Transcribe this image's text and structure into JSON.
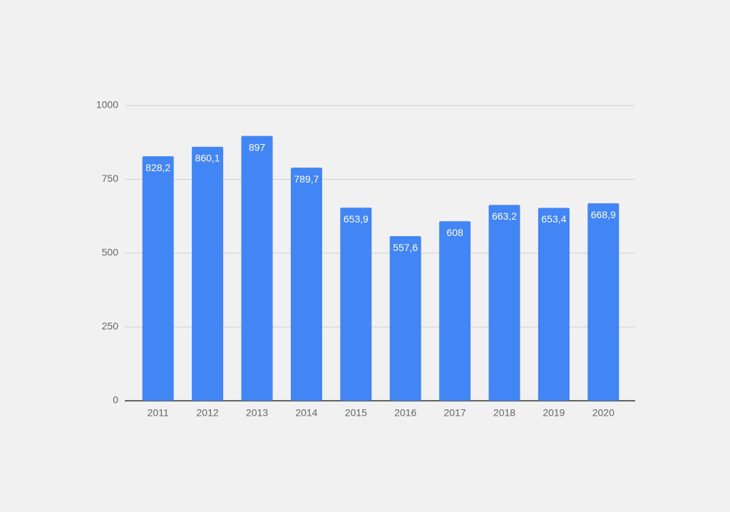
{
  "chart_data": {
    "type": "bar",
    "categories": [
      "2011",
      "2012",
      "2013",
      "2014",
      "2015",
      "2016",
      "2017",
      "2018",
      "2019",
      "2020"
    ],
    "values": [
      828.2,
      860.1,
      897,
      789.7,
      653.9,
      557.6,
      608,
      663.2,
      653.4,
      668.9
    ],
    "value_labels": [
      "828,2",
      "860,1",
      "897",
      "789,7",
      "653,9",
      "557,6",
      "608",
      "663,2",
      "653,4",
      "668,9"
    ],
    "color": "#4285f4",
    "ylim": [
      0,
      1000
    ],
    "yticks": [
      0,
      250,
      500,
      750,
      1000
    ],
    "grid": true
  }
}
